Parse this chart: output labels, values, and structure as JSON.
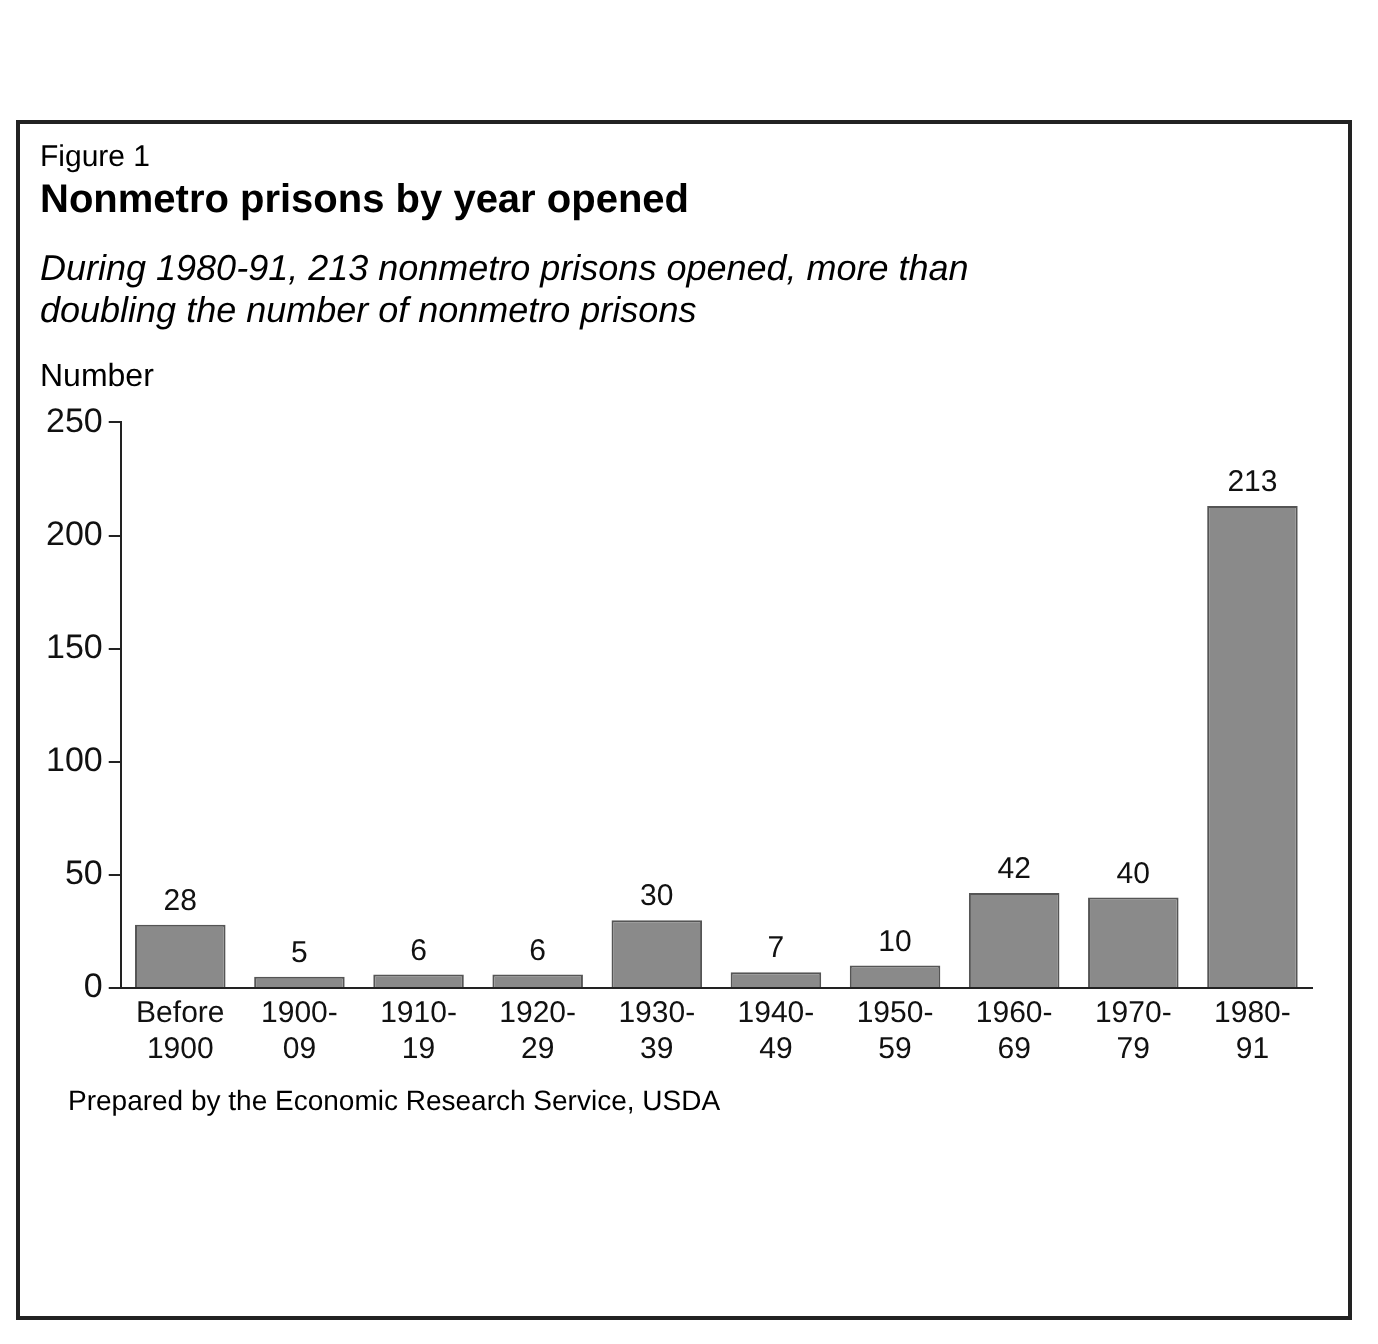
{
  "chart_data": {
    "type": "bar",
    "title": "Nonmetro prisons by year opened",
    "subtitle": "During 1980-91, 213 nonmetro prisons opened, more than doubling the number of nonmetro prisons",
    "ylabel": "Number",
    "annotations": [
      "Figure 1",
      "Prepared by the Economic Research Service, USDA"
    ],
    "categories": [
      "Before 1900",
      "1900-09",
      "1910-19",
      "1920-29",
      "1930-39",
      "1940-49",
      "1950-59",
      "1960-69",
      "1970-79",
      "1980-91"
    ],
    "values": [
      28,
      5,
      6,
      6,
      30,
      7,
      10,
      42,
      40,
      213
    ],
    "color": "#8a8a8a",
    "ylim": [
      0,
      250
    ],
    "yticks": [
      0,
      50,
      100,
      150,
      200,
      250
    ],
    "grid": false,
    "data_labels": true,
    "legend": false
  }
}
